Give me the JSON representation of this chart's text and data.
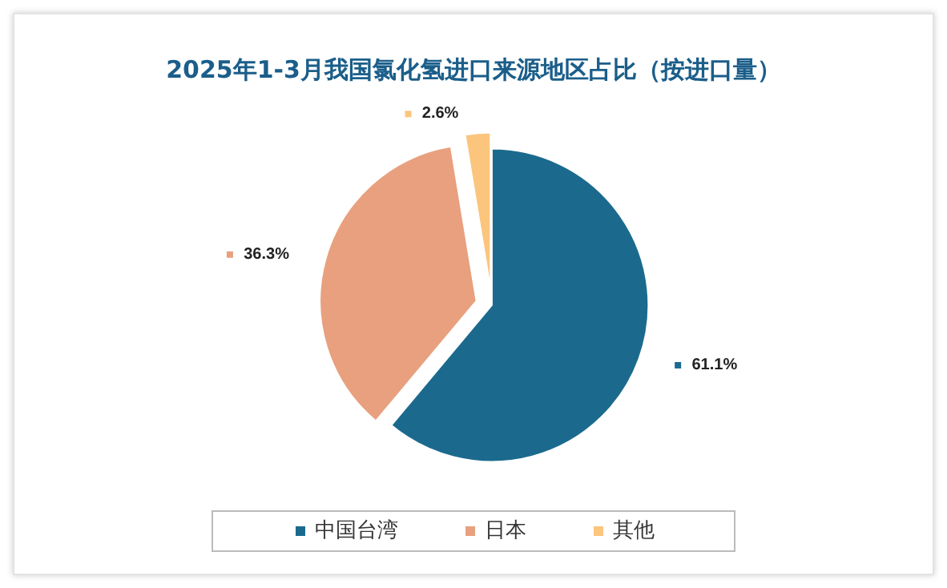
{
  "chart_data": {
    "type": "pie",
    "title": "2025年1-3月我国氯化氢进口来源地区占比（按进口量）",
    "categories": [
      "中国台湾",
      "日本",
      "其他"
    ],
    "values": [
      61.1,
      36.3,
      2.6
    ],
    "colors": [
      "#1b6a8e",
      "#e8a07e",
      "#fbc57d"
    ],
    "value_labels": [
      "61.1%",
      "36.3%",
      "2.6%"
    ],
    "legend": "bottom"
  }
}
